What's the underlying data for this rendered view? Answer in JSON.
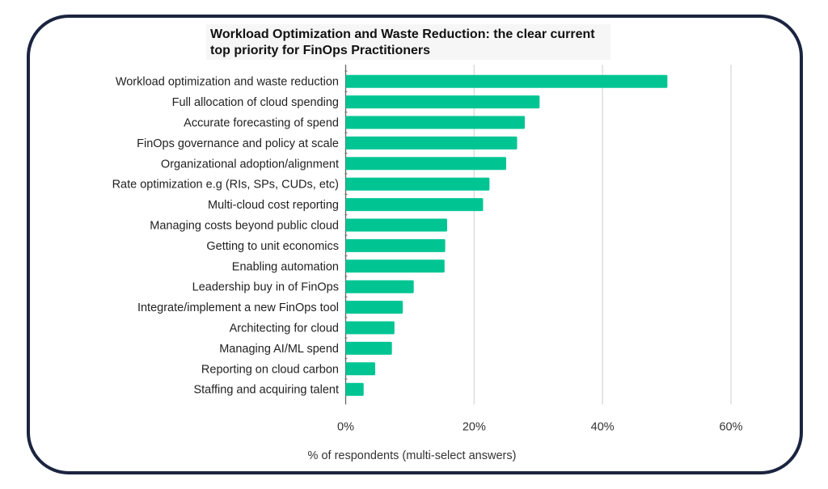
{
  "chart_data": {
    "type": "bar",
    "orientation": "horizontal",
    "title": "Workload Optimization and Waste Reduction: the clear current top priority for FinOps Practitioners",
    "xlabel": "% of respondents (multi-select answers)",
    "ylabel": "",
    "xlim": [
      0,
      60
    ],
    "xticks": [
      "0%",
      "20%",
      "40%",
      "60%"
    ],
    "xtick_values": [
      0,
      20,
      40,
      60
    ],
    "grid": true,
    "bar_color": "#00c593",
    "categories": [
      "Workload optimization and waste reduction",
      "Full allocation of cloud spending",
      "Accurate forecasting of spend",
      "FinOps governance and policy at scale",
      "Organizational adoption/alignment",
      "Rate optimization e.g (RIs, SPs, CUDs, etc)",
      "Multi-cloud cost reporting",
      "Managing costs beyond public cloud",
      "Getting to unit economics",
      "Enabling automation",
      "Leadership buy in of FinOps",
      "Integrate/implement a new FinOps tool",
      "Architecting for cloud",
      "Managing AI/ML spend",
      "Reporting on cloud carbon",
      "Staffing and acquiring talent"
    ],
    "values": [
      50.1,
      30.2,
      27.9,
      26.7,
      25.0,
      22.4,
      21.4,
      15.8,
      15.5,
      15.4,
      10.6,
      8.9,
      7.6,
      7.2,
      4.6,
      2.8
    ]
  }
}
